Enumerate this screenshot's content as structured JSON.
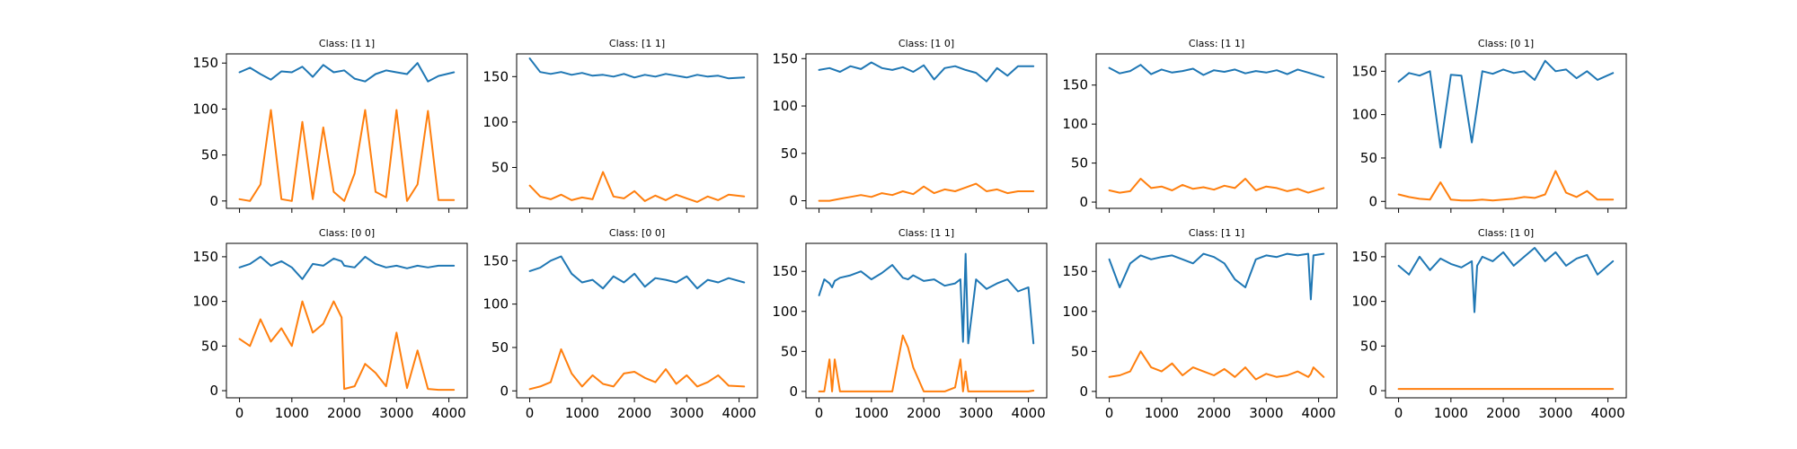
{
  "colors": {
    "series_1": "#1f77b4",
    "series_2": "#ff7f0e"
  },
  "chart_data": [
    {
      "type": "line",
      "title": "Class: [1 1]",
      "xlim": [
        -250,
        4350
      ],
      "ylim": [
        -8,
        160
      ],
      "x_ticks": [],
      "y_ticks": [
        0,
        50,
        100,
        150
      ],
      "grid": false,
      "x": [
        0,
        200,
        400,
        600,
        800,
        1000,
        1200,
        1400,
        1600,
        1800,
        2000,
        2200,
        2400,
        2600,
        2800,
        3000,
        3200,
        3400,
        3600,
        3800,
        4096
      ],
      "series": [
        {
          "values": [
            140,
            145,
            138,
            132,
            141,
            140,
            146,
            135,
            148,
            140,
            142,
            133,
            130,
            138,
            142,
            140,
            138,
            150,
            130,
            136,
            140
          ]
        },
        {
          "values": [
            2,
            0,
            18,
            99,
            2,
            0,
            86,
            2,
            80,
            10,
            0,
            30,
            99,
            10,
            4,
            99,
            0,
            18,
            98,
            1,
            1
          ]
        }
      ]
    },
    {
      "type": "line",
      "title": "Class: [1 1]",
      "xlim": [
        -250,
        4350
      ],
      "ylim": [
        5,
        175
      ],
      "x_ticks": [],
      "y_ticks": [
        50,
        100,
        150
      ],
      "grid": false,
      "x": [
        0,
        200,
        400,
        600,
        800,
        1000,
        1200,
        1400,
        1600,
        1800,
        2000,
        2200,
        2400,
        2600,
        2800,
        3000,
        3200,
        3400,
        3600,
        3800,
        4096
      ],
      "series": [
        {
          "values": [
            170,
            155,
            153,
            155,
            152,
            154,
            151,
            152,
            150,
            153,
            149,
            152,
            150,
            153,
            151,
            149,
            152,
            150,
            151,
            148,
            149
          ]
        },
        {
          "values": [
            30,
            18,
            15,
            20,
            14,
            17,
            15,
            45,
            18,
            16,
            24,
            13,
            19,
            14,
            20,
            16,
            12,
            18,
            14,
            20,
            18
          ]
        }
      ]
    },
    {
      "type": "line",
      "title": "Class: [1 0]",
      "xlim": [
        -250,
        4350
      ],
      "ylim": [
        -8,
        155
      ],
      "x_ticks": [],
      "y_ticks": [
        0,
        50,
        100,
        150
      ],
      "grid": false,
      "x": [
        0,
        200,
        400,
        600,
        800,
        1000,
        1200,
        1400,
        1600,
        1800,
        2000,
        2200,
        2400,
        2600,
        2800,
        3000,
        3200,
        3400,
        3600,
        3800,
        4096
      ],
      "series": [
        {
          "values": [
            138,
            140,
            136,
            142,
            139,
            146,
            140,
            138,
            141,
            136,
            143,
            128,
            140,
            142,
            138,
            135,
            126,
            140,
            132,
            142,
            142
          ]
        },
        {
          "values": [
            0,
            0,
            2,
            4,
            6,
            4,
            8,
            6,
            10,
            7,
            15,
            8,
            12,
            10,
            14,
            18,
            10,
            12,
            8,
            10,
            10
          ]
        }
      ]
    },
    {
      "type": "line",
      "title": "Class: [1 1]",
      "xlim": [
        -250,
        4350
      ],
      "ylim": [
        -8,
        190
      ],
      "x_ticks": [],
      "y_ticks": [
        0,
        50,
        100,
        150
      ],
      "grid": false,
      "x": [
        0,
        200,
        400,
        600,
        800,
        1000,
        1200,
        1400,
        1600,
        1800,
        2000,
        2200,
        2400,
        2600,
        2800,
        3000,
        3200,
        3400,
        3600,
        3800,
        4096
      ],
      "series": [
        {
          "values": [
            172,
            165,
            168,
            176,
            164,
            170,
            166,
            168,
            171,
            163,
            169,
            167,
            170,
            165,
            168,
            166,
            169,
            164,
            170,
            166,
            160
          ]
        },
        {
          "values": [
            15,
            12,
            14,
            30,
            18,
            20,
            15,
            22,
            17,
            19,
            16,
            21,
            18,
            30,
            15,
            20,
            18,
            14,
            17,
            12,
            18
          ]
        }
      ]
    },
    {
      "type": "line",
      "title": "Class: [0 1]",
      "xlim": [
        -250,
        4350
      ],
      "ylim": [
        -8,
        170
      ],
      "x_ticks": [],
      "y_ticks": [
        0,
        50,
        100,
        150
      ],
      "grid": false,
      "x": [
        0,
        200,
        400,
        600,
        800,
        1000,
        1200,
        1400,
        1600,
        1800,
        2000,
        2200,
        2400,
        2600,
        2800,
        3000,
        3200,
        3400,
        3600,
        3800,
        4096
      ],
      "series": [
        {
          "values": [
            138,
            148,
            145,
            150,
            62,
            146,
            145,
            68,
            150,
            147,
            152,
            148,
            150,
            140,
            162,
            150,
            152,
            142,
            150,
            140,
            148
          ]
        },
        {
          "values": [
            8,
            5,
            3,
            2,
            22,
            2,
            1,
            1,
            2,
            1,
            2,
            3,
            5,
            4,
            8,
            35,
            10,
            5,
            12,
            2,
            2
          ]
        }
      ]
    },
    {
      "type": "line",
      "title": "Class: [0 0]",
      "xlim": [
        -250,
        4350
      ],
      "ylim": [
        -8,
        165
      ],
      "x_ticks": [
        0,
        1000,
        2000,
        3000,
        4000
      ],
      "y_ticks": [
        0,
        50,
        100,
        150
      ],
      "grid": false,
      "x": [
        0,
        200,
        400,
        600,
        800,
        1000,
        1200,
        1400,
        1600,
        1800,
        1950,
        2000,
        2200,
        2400,
        2600,
        2800,
        3000,
        3200,
        3400,
        3600,
        3800,
        4096
      ],
      "series": [
        {
          "values": [
            138,
            142,
            150,
            140,
            145,
            138,
            125,
            142,
            140,
            148,
            145,
            140,
            138,
            150,
            142,
            138,
            140,
            137,
            140,
            138,
            140,
            140
          ]
        },
        {
          "values": [
            58,
            50,
            80,
            55,
            70,
            50,
            100,
            65,
            75,
            100,
            82,
            2,
            5,
            30,
            20,
            5,
            65,
            3,
            45,
            2,
            1,
            1
          ]
        }
      ]
    },
    {
      "type": "line",
      "title": "Class: [0 0]",
      "xlim": [
        -250,
        4350
      ],
      "ylim": [
        -8,
        170
      ],
      "x_ticks": [
        0,
        1000,
        2000,
        3000,
        4000
      ],
      "y_ticks": [
        0,
        50,
        100,
        150
      ],
      "grid": false,
      "x": [
        0,
        200,
        400,
        600,
        800,
        1000,
        1200,
        1400,
        1600,
        1800,
        2000,
        2200,
        2400,
        2600,
        2800,
        3000,
        3200,
        3400,
        3600,
        3800,
        4096
      ],
      "series": [
        {
          "values": [
            138,
            142,
            150,
            155,
            135,
            125,
            128,
            118,
            132,
            125,
            135,
            120,
            130,
            128,
            125,
            132,
            118,
            128,
            125,
            130,
            125
          ]
        },
        {
          "values": [
            2,
            5,
            10,
            48,
            20,
            5,
            18,
            8,
            5,
            20,
            22,
            15,
            10,
            25,
            8,
            18,
            5,
            10,
            18,
            6,
            5
          ]
        }
      ]
    },
    {
      "type": "line",
      "title": "Class: [1 1]",
      "xlim": [
        -250,
        4350
      ],
      "ylim": [
        -8,
        185
      ],
      "x_ticks": [
        0,
        1000,
        2000,
        3000,
        4000
      ],
      "y_ticks": [
        0,
        50,
        100,
        150
      ],
      "grid": false,
      "x": [
        0,
        100,
        200,
        250,
        300,
        400,
        600,
        800,
        1000,
        1200,
        1400,
        1600,
        1700,
        1800,
        2000,
        2200,
        2400,
        2600,
        2700,
        2750,
        2800,
        2850,
        3000,
        3200,
        3400,
        3600,
        3800,
        4000,
        4096
      ],
      "series": [
        {
          "values": [
            120,
            140,
            135,
            130,
            138,
            142,
            145,
            150,
            140,
            148,
            158,
            142,
            140,
            145,
            138,
            140,
            132,
            135,
            140,
            62,
            172,
            60,
            140,
            128,
            135,
            140,
            125,
            130,
            60
          ]
        },
        {
          "values": [
            0,
            0,
            40,
            0,
            40,
            0,
            0,
            0,
            0,
            0,
            0,
            70,
            55,
            30,
            0,
            0,
            0,
            5,
            40,
            0,
            25,
            0,
            0,
            0,
            0,
            0,
            0,
            0,
            1
          ]
        }
      ]
    },
    {
      "type": "line",
      "title": "Class: [1 1]",
      "xlim": [
        -250,
        4350
      ],
      "ylim": [
        -8,
        185
      ],
      "x_ticks": [
        0,
        1000,
        2000,
        3000,
        4000
      ],
      "y_ticks": [
        0,
        50,
        100,
        150
      ],
      "grid": false,
      "x": [
        0,
        200,
        400,
        600,
        800,
        1000,
        1200,
        1400,
        1600,
        1800,
        2000,
        2200,
        2400,
        2600,
        2800,
        3000,
        3200,
        3400,
        3600,
        3800,
        3850,
        3900,
        4096
      ],
      "series": [
        {
          "values": [
            165,
            130,
            160,
            170,
            165,
            168,
            170,
            165,
            160,
            172,
            168,
            160,
            140,
            130,
            165,
            170,
            168,
            172,
            170,
            172,
            115,
            170,
            172
          ]
        },
        {
          "values": [
            18,
            20,
            25,
            50,
            30,
            25,
            35,
            20,
            30,
            25,
            20,
            28,
            18,
            30,
            15,
            22,
            18,
            20,
            25,
            18,
            22,
            30,
            18
          ]
        }
      ]
    },
    {
      "type": "line",
      "title": "Class: [1 0]",
      "xlim": [
        -250,
        4350
      ],
      "ylim": [
        -8,
        165
      ],
      "x_ticks": [
        0,
        1000,
        2000,
        3000,
        4000
      ],
      "y_ticks": [
        0,
        50,
        100,
        150
      ],
      "grid": false,
      "x": [
        0,
        200,
        400,
        600,
        800,
        1000,
        1200,
        1400,
        1450,
        1500,
        1600,
        1800,
        2000,
        2200,
        2400,
        2600,
        2800,
        3000,
        3200,
        3400,
        3600,
        3800,
        4096
      ],
      "series": [
        {
          "values": [
            140,
            130,
            150,
            135,
            148,
            142,
            138,
            145,
            88,
            140,
            150,
            145,
            155,
            140,
            150,
            160,
            145,
            155,
            140,
            148,
            152,
            130,
            145
          ]
        },
        {
          "values": [
            2,
            2,
            2,
            2,
            2,
            2,
            2,
            2,
            2,
            2,
            2,
            2,
            2,
            2,
            2,
            2,
            2,
            2,
            2,
            2,
            2,
            2,
            2
          ]
        }
      ]
    }
  ]
}
